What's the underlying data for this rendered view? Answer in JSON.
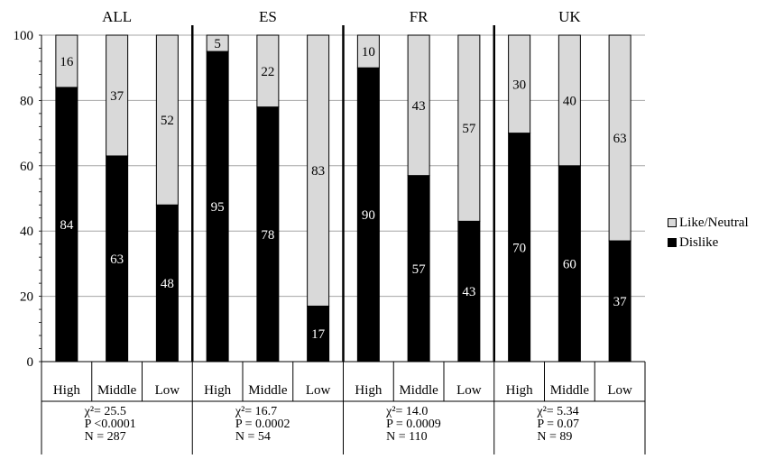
{
  "chart_data": {
    "type": "bar",
    "stacked": true,
    "percent": true,
    "ylim": [
      0,
      100
    ],
    "yticks": [
      0,
      20,
      40,
      60,
      80,
      100
    ],
    "grid": true,
    "legend_position": "right",
    "colors": {
      "Dislike": "#000000",
      "Like/Neutral": "#d9d9d9"
    },
    "categories": [
      "High",
      "Middle",
      "Low"
    ],
    "groups": [
      {
        "name": "ALL",
        "stats": [
          "χ²= 25.5",
          "P <0.0001",
          "N = 287"
        ],
        "series": [
          {
            "name": "Dislike",
            "values": [
              84,
              63,
              48
            ]
          },
          {
            "name": "Like/Neutral",
            "values": [
              16,
              37,
              52
            ]
          }
        ]
      },
      {
        "name": "ES",
        "stats": [
          "χ²= 16.7",
          "P = 0.0002",
          "N = 54"
        ],
        "series": [
          {
            "name": "Dislike",
            "values": [
              95,
              78,
              17
            ]
          },
          {
            "name": "Like/Neutral",
            "values": [
              5,
              22,
              83
            ]
          }
        ]
      },
      {
        "name": "FR",
        "stats": [
          "χ²= 14.0",
          "P = 0.0009",
          "N = 110"
        ],
        "series": [
          {
            "name": "Dislike",
            "values": [
              90,
              57,
              43
            ]
          },
          {
            "name": "Like/Neutral",
            "values": [
              10,
              43,
              57
            ]
          }
        ]
      },
      {
        "name": "UK",
        "stats": [
          "χ²= 5.34",
          "P = 0.07",
          "N = 89"
        ],
        "series": [
          {
            "name": "Dislike",
            "values": [
              70,
              60,
              37
            ]
          },
          {
            "name": "Like/Neutral",
            "values": [
              30,
              40,
              63
            ]
          }
        ]
      }
    ],
    "legend": [
      "Like/Neutral",
      "Dislike"
    ]
  }
}
